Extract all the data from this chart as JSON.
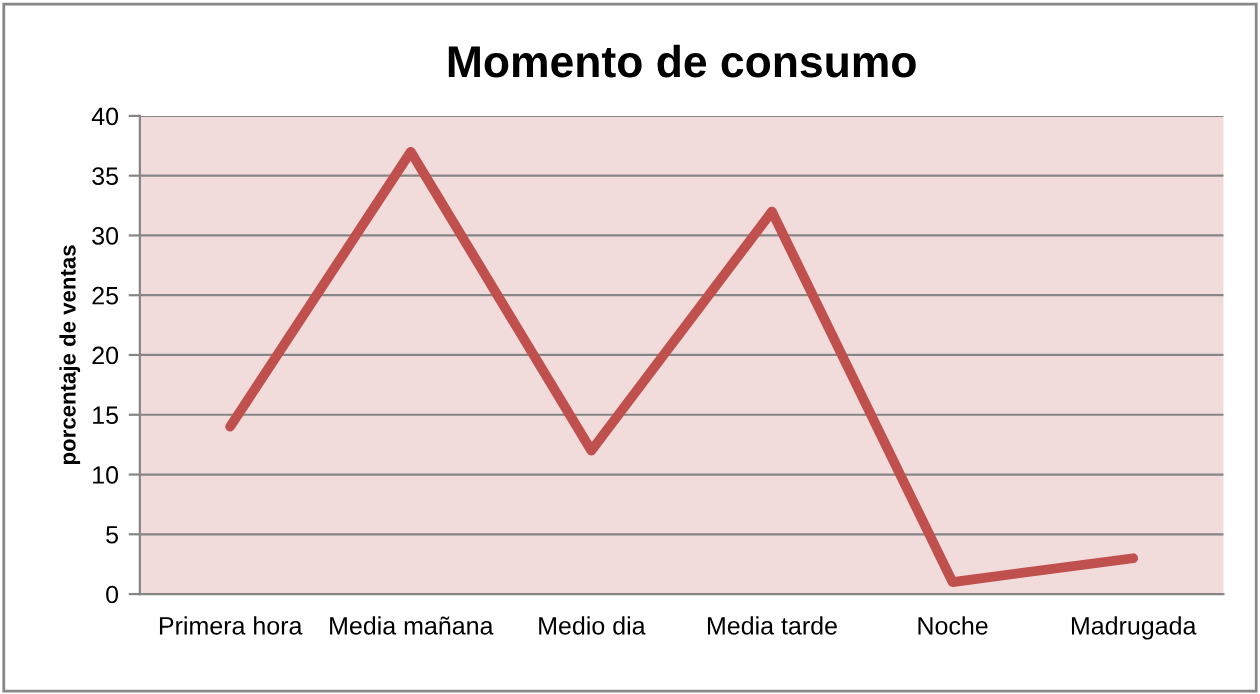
{
  "chart_data": {
    "type": "line",
    "title": "Momento de consumo",
    "ylabel": "porcentaje de ventas",
    "categories": [
      "Primera hora",
      "Media mañana",
      "Medio dia",
      "Media tarde",
      "Noche",
      "Madrugada"
    ],
    "series": [
      {
        "color": "#c0504d",
        "values": [
          14,
          37,
          12,
          32,
          1,
          3
        ]
      }
    ],
    "ylim": [
      0,
      40
    ],
    "yticks": [
      0,
      5,
      10,
      15,
      20,
      25,
      30,
      35,
      40
    ],
    "grid": "y",
    "marker": "none",
    "line_style": "solid"
  }
}
